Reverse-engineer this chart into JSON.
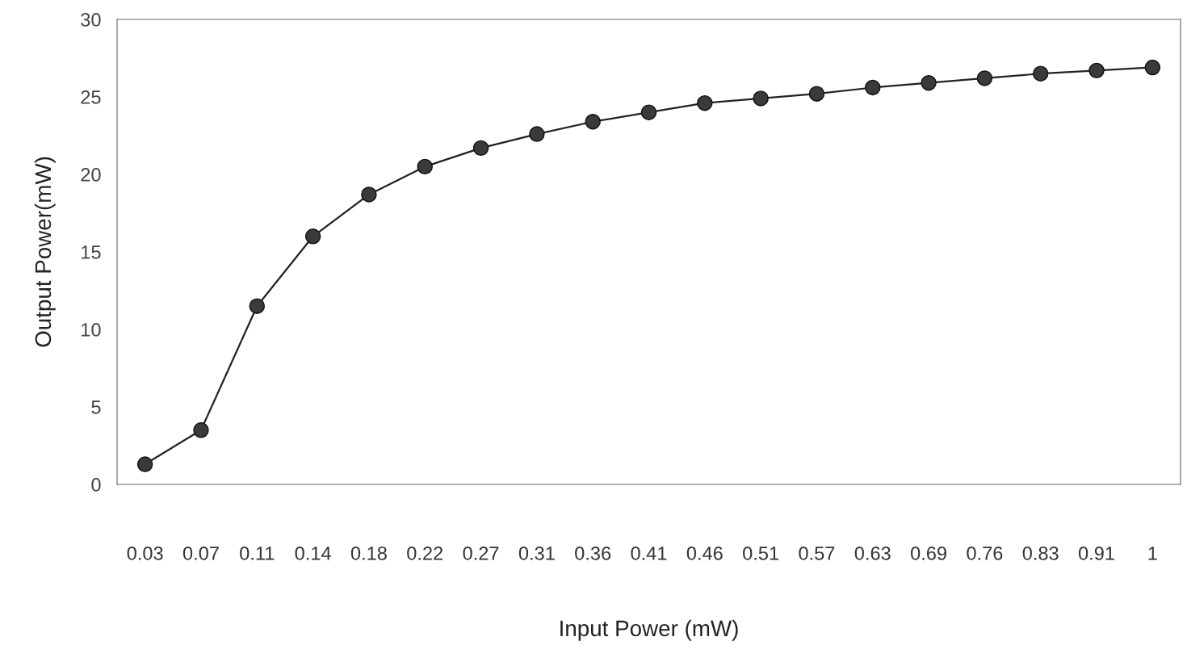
{
  "chart_data": {
    "type": "line",
    "xlabel": "Input Power (mW)",
    "ylabel": "Output Power(mW)",
    "categories": [
      "0.03",
      "0.07",
      "0.11",
      "0.14",
      "0.18",
      "0.22",
      "0.27",
      "0.31",
      "0.36",
      "0.41",
      "0.46",
      "0.51",
      "0.57",
      "0.63",
      "0.69",
      "0.76",
      "0.83",
      "0.91",
      "1"
    ],
    "series": [
      {
        "color": "#222222",
        "values": [
          1.3,
          3.5,
          11.5,
          16.0,
          18.7,
          20.5,
          21.7,
          22.6,
          23.4,
          24.0,
          24.6,
          24.9,
          25.2,
          25.6,
          25.9,
          26.2,
          26.5,
          26.7,
          26.9
        ]
      }
    ],
    "ylim": [
      0,
      30
    ],
    "yticks": [
      0,
      5,
      10,
      15,
      20,
      25,
      30
    ],
    "grid": false,
    "legend": false,
    "marker": "circle",
    "line_style": "solid"
  }
}
